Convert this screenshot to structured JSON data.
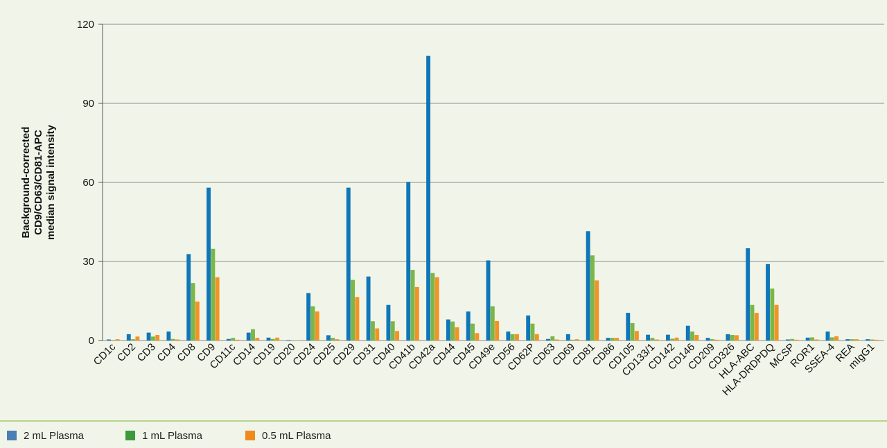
{
  "colors": {
    "s1": "#0f76b8",
    "s2": "#7ab648",
    "s3": "#f39325",
    "background": "#f1f5e9",
    "grid": "#8a8a8a"
  },
  "chart_data": {
    "type": "bar",
    "ylabel": [
      "Background-corrected",
      "CD9/CD63/CD81-APC",
      "median signal intensity"
    ],
    "ylim": [
      0,
      120
    ],
    "yticks": [
      0,
      30,
      60,
      90,
      120
    ],
    "grid": true,
    "legend_position": "bottom",
    "categories": [
      "CD1c",
      "CD2",
      "CD3",
      "CD4",
      "CD8",
      "CD9",
      "CD11c",
      "CD14",
      "CD19",
      "CD20",
      "CD24",
      "CD25",
      "CD29",
      "CD31",
      "CD40",
      "CD41b",
      "CD42a",
      "CD44",
      "CD45",
      "CD49e",
      "CD56",
      "CD62P",
      "CD63",
      "CD69",
      "CD81",
      "CD86",
      "CD105",
      "CD133/1",
      "CD142",
      "CD146",
      "CD209",
      "CD326",
      "HLA-ABC",
      "HLA-DRDPDQ",
      "MCSP",
      "ROR1",
      "SSEA-4",
      "REA",
      "mIgG1"
    ],
    "series": [
      {
        "name": "2 mL Plasma",
        "values": [
          0.4,
          2.4,
          3.0,
          3.4,
          32.8,
          58.0,
          0.6,
          3.0,
          1.1,
          0.2,
          18.0,
          2.0,
          58.0,
          24.3,
          13.5,
          60.2,
          108.0,
          8.0,
          11.0,
          30.4,
          3.4,
          9.5,
          0.6,
          2.4,
          41.5,
          1.0,
          10.5,
          2.2,
          2.2,
          5.6,
          1.0,
          2.4,
          35.0,
          29.0,
          0.4,
          1.1,
          3.4,
          0.5,
          0.5
        ]
      },
      {
        "name": "1 mL Plasma",
        "values": [
          0.2,
          0.5,
          1.5,
          0.6,
          21.8,
          34.8,
          1.0,
          4.3,
          0.6,
          0.1,
          13.0,
          1.0,
          23.0,
          7.3,
          7.3,
          26.8,
          25.6,
          7.2,
          6.4,
          13.0,
          2.4,
          6.4,
          1.6,
          0.3,
          32.3,
          1.0,
          6.6,
          1.0,
          0.7,
          3.4,
          0.5,
          2.1,
          13.5,
          19.7,
          0.6,
          1.2,
          1.2,
          0.5,
          0.4
        ]
      },
      {
        "name": "0.5 mL Plasma",
        "values": [
          0.5,
          1.5,
          2.1,
          0.4,
          14.8,
          24.0,
          0.3,
          1.0,
          1.1,
          0.1,
          11.0,
          0.5,
          16.5,
          4.6,
          3.6,
          20.3,
          24.0,
          5.0,
          2.8,
          7.4,
          2.4,
          2.4,
          0.4,
          0.5,
          22.8,
          1.0,
          3.6,
          0.4,
          1.1,
          2.1,
          0.3,
          2.0,
          10.5,
          13.5,
          0.3,
          0.4,
          1.6,
          0.5,
          0.3
        ]
      }
    ]
  }
}
